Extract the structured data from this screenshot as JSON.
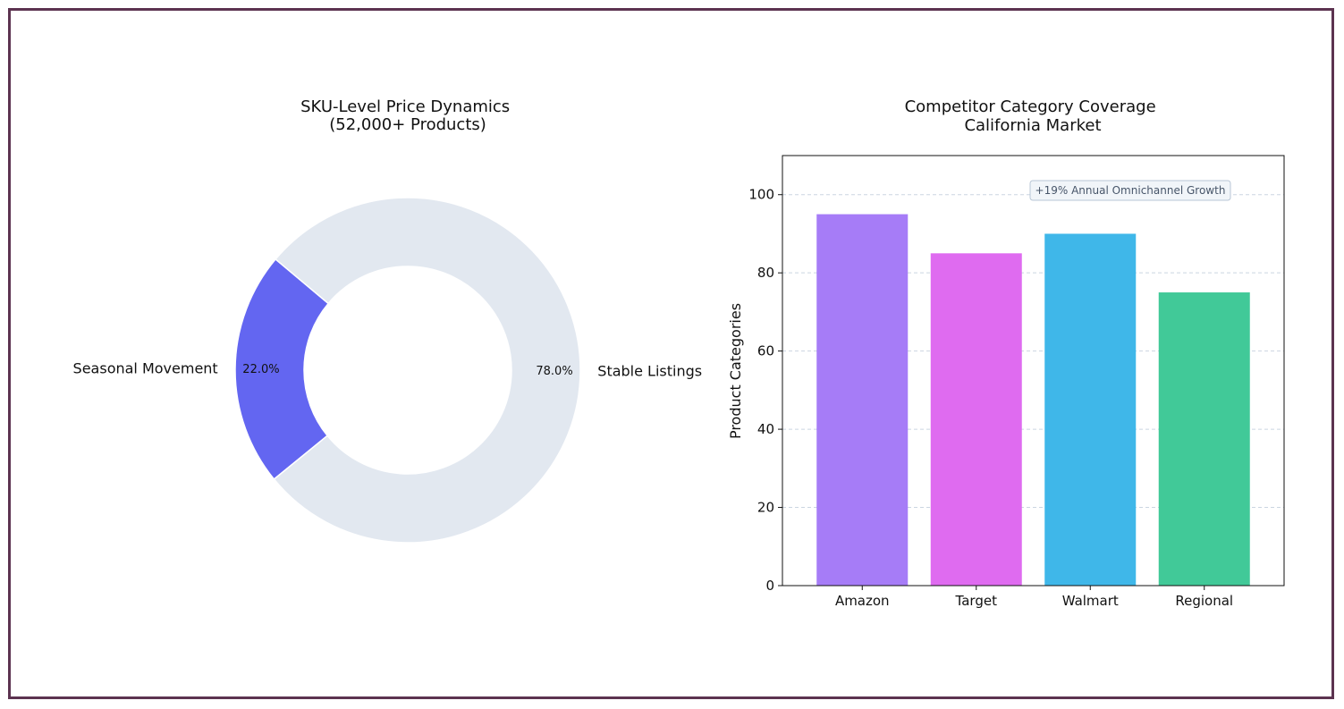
{
  "chart_data": [
    {
      "type": "pie",
      "title": "SKU-Level Price Dynamics\n(52,000+ Products)",
      "donut": true,
      "slices": [
        {
          "label": "Seasonal Movement",
          "value": 22.0,
          "pct_label": "22.0%",
          "color": "#6366f1"
        },
        {
          "label": "Stable Listings",
          "value": 78.0,
          "pct_label": "78.0%",
          "color": "#e2e8f0"
        }
      ]
    },
    {
      "type": "bar",
      "title": "Competitor Category Coverage\nCalifornia Market",
      "categories": [
        "Amazon",
        "Target",
        "Walmart",
        "Regional"
      ],
      "values": [
        95,
        85,
        90,
        75
      ],
      "colors": [
        "#a67cf7",
        "#df6bf0",
        "#3fb7e9",
        "#41c998"
      ],
      "xlabel": "",
      "ylabel": "Product Categories",
      "ylim": [
        0,
        110
      ],
      "yticks": [
        0,
        20,
        40,
        60,
        80,
        100
      ],
      "grid": true,
      "annotation": "+19% Annual Omnichannel Growth"
    }
  ]
}
